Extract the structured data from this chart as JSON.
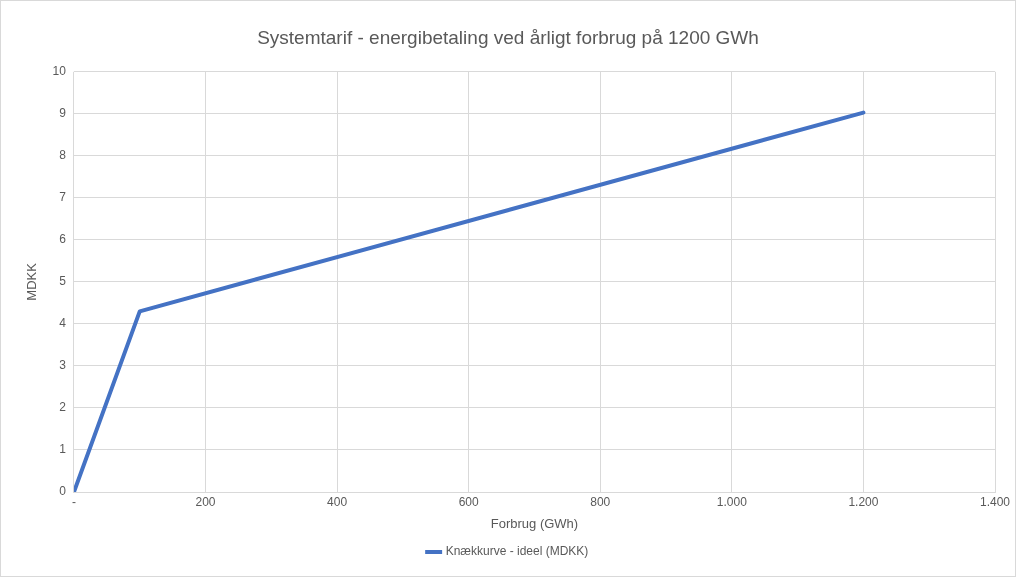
{
  "chart_data": {
    "type": "line",
    "title": "Systemtarif - energibetaling ved årligt forbrug på 1200 GWh",
    "xlabel": "Forbrug (GWh)",
    "ylabel": "MDKK",
    "x": [
      0,
      100,
      1200
    ],
    "series": [
      {
        "name": "Knækkurve - ideel (MDKK)",
        "color": "#4472c4",
        "values": [
          0,
          4.3,
          9.03
        ]
      }
    ],
    "xlim": [
      0,
      1400
    ],
    "xticks": [
      {
        "value": 0,
        "label": "-"
      },
      200,
      400,
      600,
      800,
      {
        "value": 1000,
        "label": "1.000"
      },
      {
        "value": 1200,
        "label": "1.200"
      },
      {
        "value": 1400,
        "label": "1.400"
      }
    ],
    "ylim": [
      0,
      10
    ],
    "yticks": [
      0,
      1,
      2,
      3,
      4,
      5,
      6,
      7,
      8,
      9,
      10
    ],
    "grid": true,
    "legend": "bottom",
    "marker": "none",
    "line_style": "solid"
  }
}
